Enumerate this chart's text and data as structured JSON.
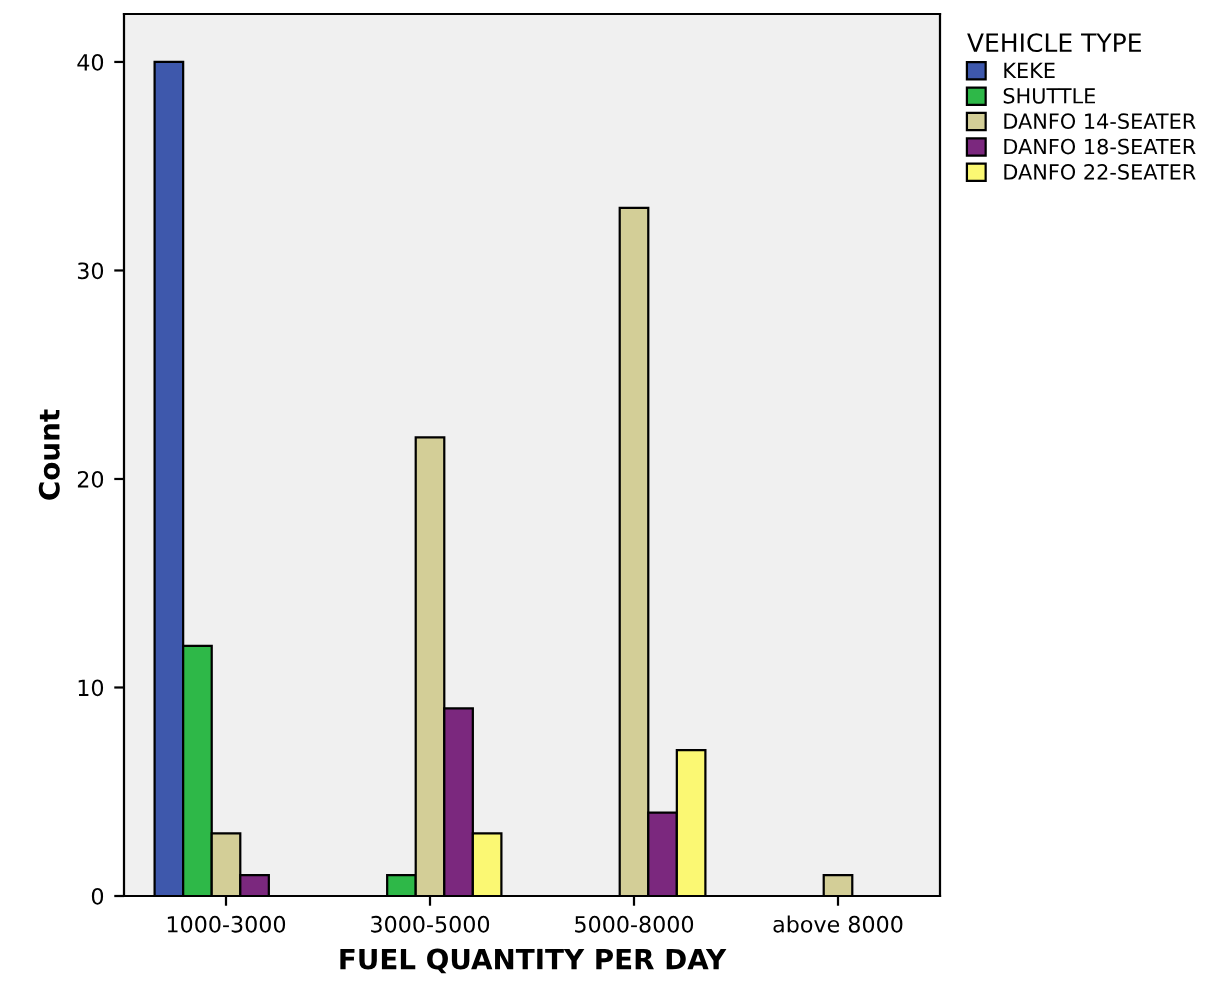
{
  "chart_data": {
    "type": "bar",
    "xlabel": "FUEL QUANTITY PER DAY",
    "ylabel": "Count",
    "legend_title": "VEHICLE TYPE",
    "categories": [
      "1000-3000",
      "3000-5000",
      "5000-8000",
      "above 8000"
    ],
    "series": [
      {
        "name": "KEKE",
        "color": "#3e58ac",
        "values": [
          40,
          null,
          null,
          null
        ]
      },
      {
        "name": "SHUTTLE",
        "color": "#2eb848",
        "values": [
          12,
          1,
          null,
          null
        ]
      },
      {
        "name": "DANFO 14-SEATER",
        "color": "#d3ce97",
        "values": [
          3,
          22,
          33,
          1
        ]
      },
      {
        "name": "DANFO 18-SEATER",
        "color": "#7b287e",
        "values": [
          1,
          9,
          4,
          null
        ]
      },
      {
        "name": "DANFO 22-SEATER",
        "color": "#fbf873",
        "values": [
          null,
          3,
          7,
          null
        ]
      }
    ],
    "ylim": [
      0,
      42.3
    ],
    "yticks": [
      0,
      10,
      20,
      30,
      40
    ],
    "grid": false,
    "legend": "top right"
  }
}
